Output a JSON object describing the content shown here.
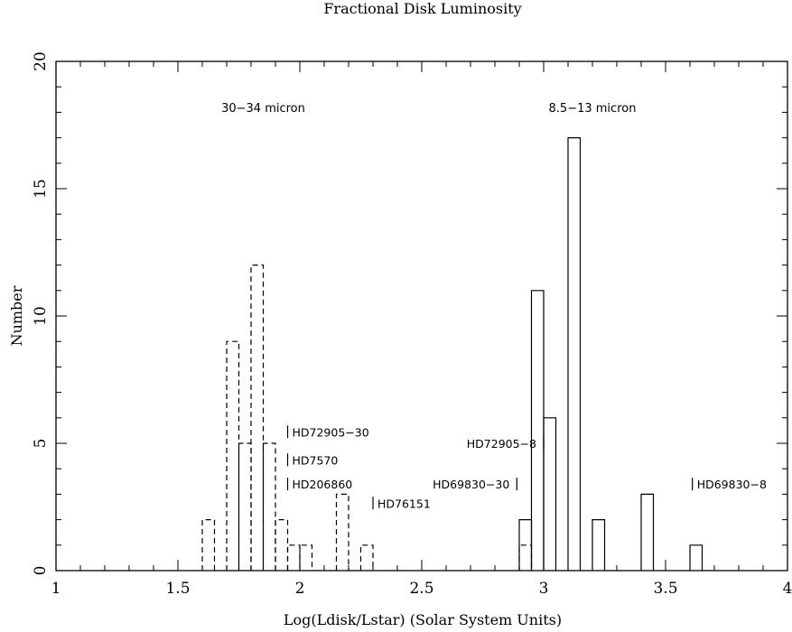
{
  "chart_data": {
    "type": "histogram",
    "title": "Fractional Disk Luminosity",
    "xlabel": "Log(Ldisk/Lstar) (Solar System Units)",
    "ylabel": "Number",
    "xlim": [
      1,
      4
    ],
    "ylim": [
      0,
      20
    ],
    "x_ticks": [
      1,
      1.5,
      2,
      2.5,
      3,
      3.5,
      4
    ],
    "x_tick_labels": [
      "1",
      "1.5",
      "2",
      "2.5",
      "3",
      "3.5",
      "4"
    ],
    "y_ticks": [
      0,
      5,
      10,
      15,
      20
    ],
    "y_tick_labels": [
      "0",
      "5",
      "10",
      "15",
      "20"
    ],
    "grid": false,
    "bin_width": 0.05,
    "series": [
      {
        "name": "30-34 micron",
        "line_style": "dashed",
        "bins": [
          {
            "x0": 1.6,
            "x1": 1.65,
            "count": 2
          },
          {
            "x0": 1.65,
            "x1": 1.7,
            "count": 0
          },
          {
            "x0": 1.7,
            "x1": 1.75,
            "count": 9
          },
          {
            "x0": 1.75,
            "x1": 1.8,
            "count": 5
          },
          {
            "x0": 1.8,
            "x1": 1.85,
            "count": 12
          },
          {
            "x0": 1.85,
            "x1": 1.9,
            "count": 5
          },
          {
            "x0": 1.9,
            "x1": 1.95,
            "count": 2
          },
          {
            "x0": 1.95,
            "x1": 2.0,
            "count": 1
          },
          {
            "x0": 2.0,
            "x1": 2.05,
            "count": 1
          },
          {
            "x0": 2.05,
            "x1": 2.1,
            "count": 0
          },
          {
            "x0": 2.1,
            "x1": 2.15,
            "count": 0
          },
          {
            "x0": 2.15,
            "x1": 2.2,
            "count": 3
          },
          {
            "x0": 2.2,
            "x1": 2.25,
            "count": 0
          },
          {
            "x0": 2.25,
            "x1": 2.3,
            "count": 1
          },
          {
            "x0": 2.9,
            "x1": 2.95,
            "count": 1
          }
        ]
      },
      {
        "name": "8.5-13 micron",
        "line_style": "solid",
        "bins": [
          {
            "x0": 2.9,
            "x1": 2.95,
            "count": 2
          },
          {
            "x0": 2.95,
            "x1": 3.0,
            "count": 11
          },
          {
            "x0": 3.0,
            "x1": 3.05,
            "count": 6
          },
          {
            "x0": 3.05,
            "x1": 3.1,
            "count": 0
          },
          {
            "x0": 3.1,
            "x1": 3.15,
            "count": 17
          },
          {
            "x0": 3.15,
            "x1": 3.2,
            "count": 0
          },
          {
            "x0": 3.2,
            "x1": 3.25,
            "count": 2
          },
          {
            "x0": 3.4,
            "x1": 3.45,
            "count": 3
          },
          {
            "x0": 3.6,
            "x1": 3.65,
            "count": 1
          }
        ]
      }
    ],
    "region_labels": [
      {
        "text": "30−34 micron",
        "x": 1.85,
        "y": 18.2
      },
      {
        "text": "8.5−13 micron",
        "x": 3.2,
        "y": 18.2
      }
    ],
    "markers": [
      {
        "name": "HD72905-30",
        "label": "HD72905−30",
        "x": 1.95,
        "y": 5.45,
        "side": "right"
      },
      {
        "name": "HD7570",
        "label": "HD7570",
        "x": 1.95,
        "y": 4.35,
        "side": "right"
      },
      {
        "name": "HD206860",
        "label": "HD206860",
        "x": 1.95,
        "y": 3.4,
        "side": "right"
      },
      {
        "name": "HD76151",
        "label": "HD76151",
        "x": 2.3,
        "y": 2.65,
        "side": "right"
      },
      {
        "name": "HD72905-8",
        "label": "HD72905−8",
        "x": 3.0,
        "y": 5.0,
        "side": "left"
      },
      {
        "name": "HD69830-30",
        "label": "HD69830−30",
        "x": 2.89,
        "y": 3.4,
        "side": "left"
      },
      {
        "name": "HD69830-8",
        "label": "HD69830−8",
        "x": 3.61,
        "y": 3.4,
        "side": "right"
      }
    ]
  }
}
